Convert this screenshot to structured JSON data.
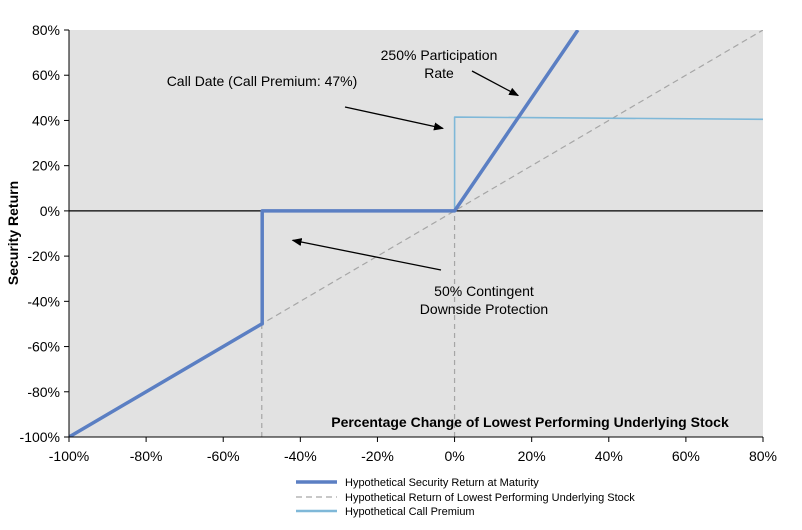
{
  "chart_data": {
    "type": "line",
    "xlabel": "Percentage Change of Lowest Performing Underlying Stock",
    "ylabel": "Security Return",
    "xlim": [
      -100,
      80
    ],
    "ylim": [
      -100,
      80
    ],
    "x_ticks": [
      "-100%",
      "-80%",
      "-60%",
      "-40%",
      "-20%",
      "0%",
      "20%",
      "40%",
      "60%",
      "80%"
    ],
    "y_ticks": [
      "-100%",
      "-80%",
      "-60%",
      "-40%",
      "-20%",
      "0%",
      "20%",
      "40%",
      "60%",
      "80%"
    ],
    "grid": false,
    "legend_position": "bottom",
    "background_color": "#e2e2e2",
    "series": [
      {
        "name": "Hypothetical Security Return at Maturity",
        "color": "#5b7fc3",
        "style": "solid-thick",
        "points": [
          [
            -100,
            -100
          ],
          [
            -50,
            -50
          ],
          [
            -49.9,
            -50
          ],
          [
            -49.9,
            0
          ],
          [
            0,
            0
          ],
          [
            32,
            80
          ]
        ]
      },
      {
        "name": "Hypothetical Return of Lowest Performing Underlying Stock",
        "color": "#a6a6a6",
        "style": "dashed",
        "points": [
          [
            -100,
            -100
          ],
          [
            80,
            80
          ]
        ]
      },
      {
        "name": "Hypothetical Call Premium",
        "color": "#7fb8d8",
        "style": "solid-thin",
        "points": [
          [
            -50,
            -50
          ],
          [
            -49.9,
            0
          ]
        ]
      },
      {
        "name": "",
        "color": "#7fb8d8",
        "style": "solid-thin",
        "points": [
          [
            0,
            0
          ],
          [
            0,
            41.5
          ],
          [
            80,
            40.5
          ]
        ]
      }
    ],
    "reference_lines": [
      {
        "orientation": "horizontal",
        "value": 0,
        "color": "#000000"
      },
      {
        "orientation": "vertical",
        "value": -50,
        "color": "#a6a6a6",
        "style": "dashed"
      },
      {
        "orientation": "vertical",
        "value": 0,
        "color": "#a6a6a6",
        "style": "dashed"
      }
    ],
    "annotations": [
      {
        "lines": [
          "250% Participation",
          "Rate"
        ],
        "arrow_to": [
          16.5,
          51
        ]
      },
      {
        "lines": [
          "Call Date (Call Premium: 47%)"
        ],
        "arrow_to": [
          -3,
          36.5
        ]
      },
      {
        "lines": [
          "50% Contingent",
          "Downside Protection"
        ],
        "arrow_to": [
          -42,
          -13
        ]
      }
    ]
  }
}
